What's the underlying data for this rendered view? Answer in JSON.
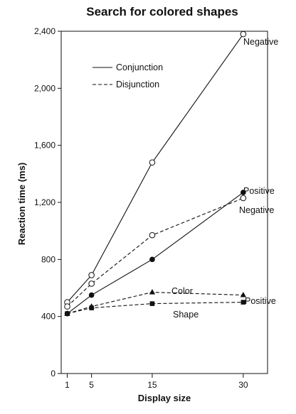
{
  "chart_data": {
    "type": "line",
    "title": "Search for colored shapes",
    "xlabel": "Display size",
    "ylabel": "Reaction time (ms)",
    "x": [
      1,
      5,
      15,
      30
    ],
    "xlim": [
      0,
      34
    ],
    "ylim": [
      0,
      2400
    ],
    "x_ticks": [
      1,
      5,
      15,
      30
    ],
    "y_ticks": [
      0,
      400,
      800,
      1200,
      1600,
      2000,
      2400
    ],
    "x_tick_labels": [
      "1",
      "5",
      "15",
      "30"
    ],
    "y_tick_labels": [
      "0",
      "400",
      "800",
      "1,200",
      "1,600",
      "2,000",
      "2,400"
    ],
    "grid": false,
    "legend": {
      "placement": "top-left",
      "entries": [
        {
          "label": "Conjunction",
          "line_style": "solid"
        },
        {
          "label": "Disjunction",
          "line_style": "dashed"
        }
      ]
    },
    "series": [
      {
        "label": "Negative",
        "group": "Conjunction",
        "line_style": "solid",
        "marker": "open-circle",
        "values": [
          500,
          690,
          1480,
          2380
        ]
      },
      {
        "label": "Positive",
        "group": "Conjunction",
        "line_style": "solid",
        "marker": "filled-circle",
        "values": [
          420,
          550,
          800,
          1270
        ]
      },
      {
        "label": "Negative",
        "group": "Disjunction",
        "line_style": "dashed",
        "marker": "open-circle",
        "values": [
          470,
          630,
          970,
          1230
        ]
      },
      {
        "label": "Color",
        "group": "Disjunction",
        "line_style": "dashed",
        "marker": "filled-triangle",
        "values": [
          420,
          470,
          570,
          550
        ]
      },
      {
        "label": "Shape",
        "group": "Disjunction",
        "line_style": "dashed",
        "marker": "filled-square",
        "values": [
          420,
          460,
          490,
          500
        ]
      }
    ],
    "annotations": [
      "Positive"
    ]
  }
}
